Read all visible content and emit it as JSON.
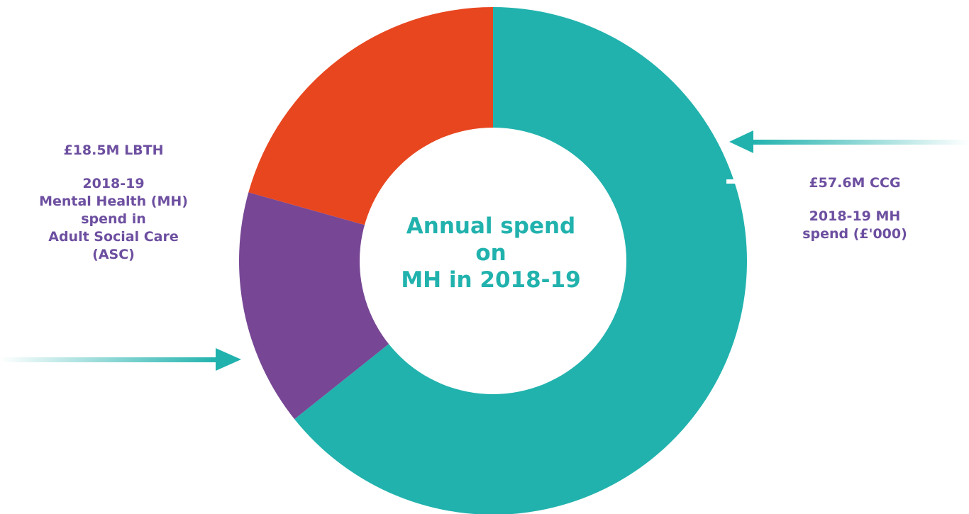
{
  "chart_data": {
    "type": "pie",
    "title": "",
    "center_text": [
      "Annual spend",
      "on",
      "MH in 2018-19"
    ],
    "slices": [
      {
        "label": "£57.6M CCG",
        "value": 57.6,
        "color": "#21b2ad"
      },
      {
        "label": "",
        "value": 13.5,
        "color": "#774795"
      },
      {
        "label": "",
        "value": 18.5,
        "color": "#e8461f"
      }
    ],
    "annotations": {
      "left": {
        "amount": "£18.5M LBTH",
        "lines": [
          "2018-19",
          "Mental Health (MH)",
          "spend in",
          "Adult Social Care",
          "(ASC)"
        ]
      },
      "right": {
        "amount": "£57.6M CCG",
        "lines": [
          "2018-19 MH",
          "spend (£'000)"
        ]
      }
    },
    "colors": {
      "label_text": "#6d4fa0",
      "center_text": "#21b2ad",
      "arrow": "#21b2ad"
    }
  }
}
